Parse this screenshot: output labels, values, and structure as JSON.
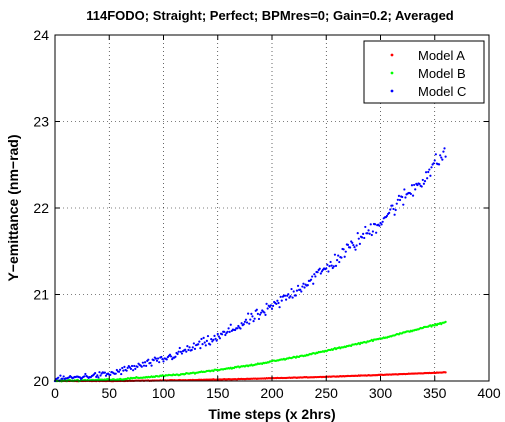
{
  "chart_data": {
    "type": "scatter",
    "title": "114FODO; Straight; Perfect; BPMres=0; Gain=0.2; Averaged",
    "xlabel": "Time steps (x 2hrs)",
    "ylabel": "Y−emittance (nm−rad)",
    "xlim": [
      0,
      400
    ],
    "ylim": [
      20,
      24
    ],
    "xticks": [
      0,
      50,
      100,
      150,
      200,
      250,
      300,
      350,
      400
    ],
    "yticks": [
      20,
      21,
      22,
      23,
      24
    ],
    "xtick_labels": [
      "0",
      "50",
      "100",
      "150",
      "200",
      "250",
      "300",
      "350",
      "400"
    ],
    "ytick_labels": [
      "20",
      "21",
      "22",
      "23",
      "24"
    ],
    "grid": true,
    "legend_position": "top-right",
    "x_range": [
      0,
      360
    ],
    "x_step": 1,
    "series": [
      {
        "name": "Model A",
        "color": "#ff0000",
        "y_at_x": [
          [
            0,
            20.0
          ],
          [
            60,
            20.0
          ],
          [
            120,
            20.01
          ],
          [
            180,
            20.025
          ],
          [
            240,
            20.045
          ],
          [
            300,
            20.07
          ],
          [
            360,
            20.1
          ]
        ]
      },
      {
        "name": "Model B",
        "color": "#00ff00",
        "y_at_x": [
          [
            0,
            20.0
          ],
          [
            60,
            20.02
          ],
          [
            120,
            20.08
          ],
          [
            180,
            20.18
          ],
          [
            240,
            20.32
          ],
          [
            300,
            20.49
          ],
          [
            360,
            20.68
          ]
        ]
      },
      {
        "name": "Model C",
        "color": "#0000ff",
        "y_at_x": [
          [
            0,
            20.02
          ],
          [
            50,
            20.08
          ],
          [
            100,
            20.25
          ],
          [
            150,
            20.5
          ],
          [
            200,
            20.85
          ],
          [
            250,
            21.3
          ],
          [
            300,
            21.85
          ],
          [
            340,
            22.35
          ],
          [
            360,
            22.65
          ]
        ]
      }
    ]
  }
}
